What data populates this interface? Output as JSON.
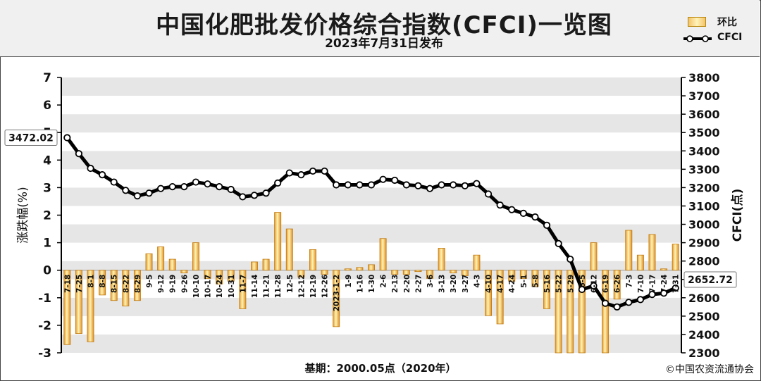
{
  "header": {
    "title": "中国化肥批发价格综合指数(CFCI)一览图",
    "subtitle": "2023年7月31日发布"
  },
  "legend": {
    "bar_label": "环比",
    "line_label": "CFCI"
  },
  "footer": {
    "base": "基期：2000.05点（2020年）",
    "copyright": "©中国农资流通协会"
  },
  "colors": {
    "bar_fill": "#f3c36b",
    "bar_edge": "#c07a10",
    "line": "#000000",
    "grid_band": "#e6e6e6"
  },
  "chart_data": {
    "type": "bar+line",
    "x_tick_labels": [
      "7-18",
      "7-25",
      "8-1",
      "8-8",
      "8-15",
      "8-22",
      "8-29",
      "9-5",
      "9-12",
      "9-19",
      "9-26",
      "10-10",
      "10-17",
      "10-24",
      "10-31",
      "11-7",
      "11-14",
      "11-21",
      "11-28",
      "12-5",
      "12-12",
      "12-19",
      "12-26",
      "2023-1-2",
      "1-9",
      "1-16",
      "1-30",
      "2-6",
      "2-13",
      "2-20",
      "2-27",
      "3-6",
      "3-13",
      "3-20",
      "3-27",
      "4-3",
      "4-10",
      "4-17",
      "4-24",
      "5-1",
      "5-8",
      "5-16",
      "5-22",
      "5-29",
      "6-5",
      "6-12",
      "6-19",
      "6-26",
      "7-3",
      "7-10",
      "7-17",
      "7-24",
      "7-31"
    ],
    "series": [
      {
        "name": "环比",
        "type": "bar",
        "axis": "left",
        "values": [
          -2.7,
          -2.3,
          -2.6,
          -0.9,
          -1.1,
          -1.3,
          -1.1,
          0.6,
          0.85,
          0.4,
          -0.1,
          1.0,
          -0.3,
          -0.5,
          -0.4,
          -1.4,
          0.3,
          0.4,
          2.1,
          1.5,
          -0.25,
          0.75,
          -0.15,
          -2.05,
          0.05,
          0.1,
          0.2,
          1.15,
          -0.15,
          -0.15,
          -0.05,
          -0.3,
          0.8,
          -0.1,
          -0.2,
          0.55,
          -1.65,
          -1.95,
          -0.4,
          -0.3,
          -0.6,
          -1.4,
          -3.0,
          -3.0,
          -3.0,
          1.0,
          -3.0,
          -1.05,
          1.45,
          0.55,
          1.3,
          0.05,
          0.95
        ]
      },
      {
        "name": "CFCI",
        "type": "line",
        "axis": "right",
        "values": [
          3472.02,
          3385,
          3305,
          3270,
          3230,
          3185,
          3155,
          3170,
          3195,
          3205,
          3205,
          3230,
          3220,
          3205,
          3190,
          3150,
          3158,
          3170,
          3225,
          3280,
          3270,
          3290,
          3290,
          3215,
          3215,
          3215,
          3215,
          3245,
          3240,
          3215,
          3210,
          3195,
          3215,
          3215,
          3210,
          3222,
          3165,
          3105,
          3080,
          3060,
          3040,
          2995,
          2895,
          2810,
          2645,
          2665,
          2570,
          2550,
          2575,
          2590,
          2618,
          2625,
          2652.72
        ]
      }
    ],
    "left_axis": {
      "label": "涨跌幅(%)",
      "min": -3,
      "max": 7,
      "ticks": [
        "-3",
        "-2",
        "-1",
        "0",
        "1",
        "2",
        "3",
        "4",
        "5",
        "6",
        "7"
      ]
    },
    "right_axis": {
      "label": "CFCI(点)",
      "min": 2300,
      "max": 3800,
      "ticks": [
        "2300",
        "2400",
        "2500",
        "2600",
        "2700",
        "2800",
        "2900",
        "3000",
        "3100",
        "3200",
        "3300",
        "3400",
        "3500",
        "3600",
        "3700",
        "3800"
      ]
    },
    "annotations": {
      "first_value": "3472.02",
      "last_value": "2652.72"
    },
    "legend_position": "top-right",
    "grid": "horizontal bands"
  }
}
